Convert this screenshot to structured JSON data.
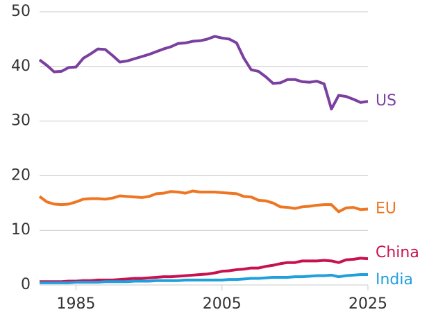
{
  "chart_data": {
    "type": "line",
    "x": [
      1980,
      1981,
      1982,
      1983,
      1984,
      1985,
      1986,
      1987,
      1988,
      1989,
      1990,
      1991,
      1992,
      1993,
      1994,
      1995,
      1996,
      1997,
      1998,
      1999,
      2000,
      2001,
      2002,
      2003,
      2004,
      2005,
      2006,
      2007,
      2008,
      2009,
      2010,
      2011,
      2012,
      2013,
      2014,
      2015,
      2016,
      2017,
      2018,
      2019,
      2020,
      2021,
      2022,
      2023,
      2024,
      2025
    ],
    "series": [
      {
        "name": "US",
        "color": "#7b3fa0",
        "values": [
          41.2,
          40.2,
          39.0,
          39.1,
          39.8,
          39.9,
          41.5,
          42.3,
          43.2,
          43.1,
          42.0,
          40.8,
          41.0,
          41.4,
          41.8,
          42.2,
          42.7,
          43.2,
          43.6,
          44.2,
          44.3,
          44.6,
          44.7,
          45.0,
          45.5,
          45.2,
          45.0,
          44.3,
          41.5,
          39.4,
          39.1,
          38.1,
          36.9,
          37.0,
          37.6,
          37.6,
          37.2,
          37.1,
          37.3,
          36.8,
          32.2,
          34.7,
          34.5,
          34.0,
          33.4,
          33.6
        ]
      },
      {
        "name": "EU",
        "color": "#ee7623",
        "values": [
          16.2,
          15.2,
          14.8,
          14.7,
          14.8,
          15.2,
          15.7,
          15.8,
          15.8,
          15.7,
          15.9,
          16.3,
          16.2,
          16.1,
          16.0,
          16.2,
          16.7,
          16.8,
          17.1,
          17.0,
          16.8,
          17.2,
          17.0,
          17.0,
          17.0,
          16.9,
          16.8,
          16.7,
          16.2,
          16.1,
          15.5,
          15.4,
          15.0,
          14.3,
          14.2,
          14.0,
          14.3,
          14.4,
          14.6,
          14.7,
          14.7,
          13.4,
          14.1,
          14.2,
          13.8,
          13.9
        ]
      },
      {
        "name": "China",
        "color": "#c8124f",
        "values": [
          0.6,
          0.6,
          0.6,
          0.6,
          0.7,
          0.7,
          0.8,
          0.8,
          0.9,
          0.9,
          0.9,
          1.0,
          1.1,
          1.2,
          1.2,
          1.3,
          1.4,
          1.5,
          1.5,
          1.6,
          1.7,
          1.8,
          1.9,
          2.0,
          2.2,
          2.5,
          2.6,
          2.8,
          2.9,
          3.1,
          3.1,
          3.4,
          3.6,
          3.9,
          4.1,
          4.1,
          4.4,
          4.4,
          4.4,
          4.5,
          4.4,
          4.1,
          4.6,
          4.7,
          4.9,
          4.8
        ]
      },
      {
        "name": "India",
        "color": "#1f9fde",
        "values": [
          0.4,
          0.4,
          0.4,
          0.4,
          0.4,
          0.5,
          0.5,
          0.5,
          0.5,
          0.6,
          0.6,
          0.6,
          0.6,
          0.7,
          0.7,
          0.7,
          0.8,
          0.8,
          0.8,
          0.8,
          0.9,
          0.9,
          0.9,
          0.9,
          0.9,
          0.9,
          1.0,
          1.0,
          1.1,
          1.2,
          1.2,
          1.3,
          1.4,
          1.4,
          1.4,
          1.5,
          1.5,
          1.6,
          1.7,
          1.7,
          1.8,
          1.5,
          1.7,
          1.8,
          1.9,
          1.9
        ]
      }
    ],
    "xlim": [
      1980,
      2025
    ],
    "xticks": [
      1985,
      2005,
      2025
    ],
    "ylim": [
      0,
      50
    ],
    "yticks": [
      0,
      10,
      20,
      30,
      40,
      50
    ],
    "grid": true
  }
}
